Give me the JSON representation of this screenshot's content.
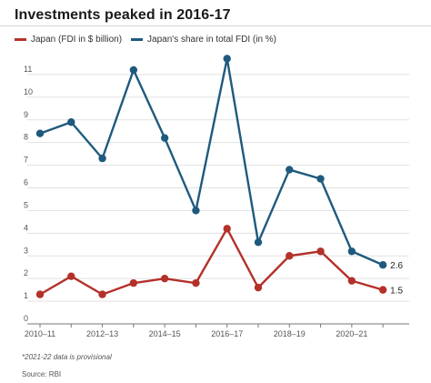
{
  "title": "Investments peaked in 2016-17",
  "footnote": "*2021-22 data is provisional",
  "source": "Source: RBI",
  "chart_data": {
    "type": "line",
    "title": "Investments peaked in 2016-17",
    "x": [
      "2010-11",
      "2011-12",
      "2012-13",
      "2013-14",
      "2014-15",
      "2015-16",
      "2016-17",
      "2017-18",
      "2018-19",
      "2019-20",
      "2020-21",
      "2021-22"
    ],
    "x_tick_labels": [
      "2010–11",
      "2012–13",
      "2014–15",
      "2016–17",
      "2018–19",
      "2020–21"
    ],
    "y_ticks": [
      0,
      1,
      2,
      3,
      4,
      5,
      6,
      7,
      8,
      9,
      10,
      11
    ],
    "ylim": [
      0,
      12
    ],
    "grid": "horizontal",
    "legend": "top-left",
    "series": [
      {
        "name": "Japan (FDI in $ billion)",
        "color": "#b4312a",
        "values": [
          1.3,
          2.1,
          1.3,
          1.8,
          2.0,
          1.8,
          4.2,
          1.6,
          3.0,
          3.2,
          1.9,
          1.5
        ],
        "end_label": "1.5"
      },
      {
        "name": "Japan's share in total FDI (in %)",
        "color": "#1f5a7e",
        "values": [
          8.4,
          8.9,
          7.3,
          11.2,
          8.2,
          5.0,
          11.7,
          3.6,
          6.8,
          6.4,
          3.2,
          2.6
        ],
        "end_label": "2.6"
      }
    ]
  }
}
